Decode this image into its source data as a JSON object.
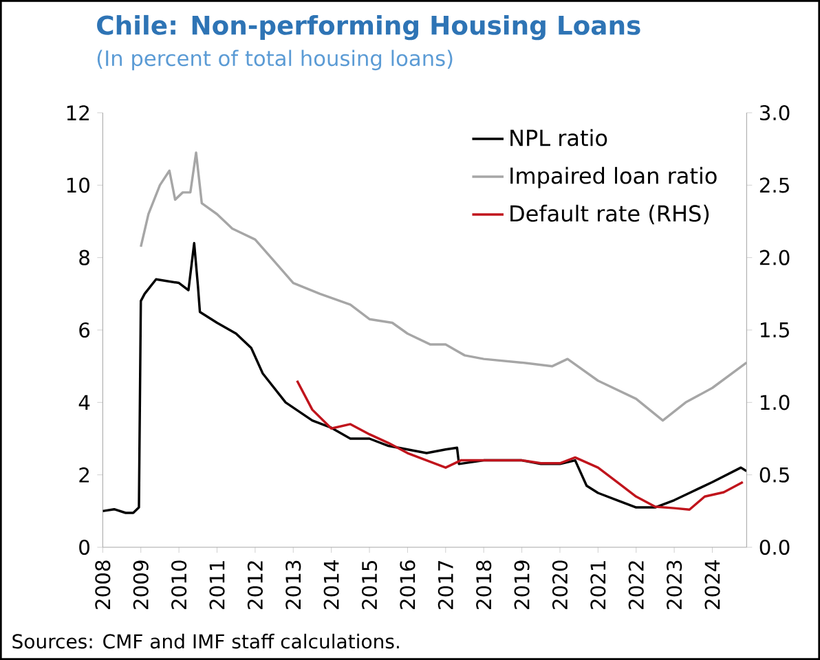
{
  "chart_data": {
    "type": "line",
    "title": "Chile: Non-performing Housing Loans",
    "subtitle": "(In percent of total housing loans)",
    "annotations": [
      "Sources: CMF and IMF staff calculations."
    ],
    "xlim": [
      2008,
      2024.9
    ],
    "xticks": [
      2008,
      2009,
      2010,
      2011,
      2012,
      2013,
      2014,
      2015,
      2016,
      2017,
      2018,
      2019,
      2020,
      2021,
      2022,
      2023,
      2024
    ],
    "ylim": [
      0,
      12
    ],
    "yticks": [
      0,
      2,
      4,
      6,
      8,
      10,
      12
    ],
    "y2lim": [
      0,
      3
    ],
    "y2ticks": [
      {
        "value": 0,
        "label": "0.0"
      },
      {
        "value": 0.5,
        "label": "0.5"
      },
      {
        "value": 1,
        "label": "1.0"
      },
      {
        "value": 1.5,
        "label": "1.5"
      },
      {
        "value": 2,
        "label": "2.0"
      },
      {
        "value": 2.5,
        "label": "2.5"
      },
      {
        "value": 3,
        "label": "3.0"
      }
    ],
    "grid": false,
    "legend": "top right",
    "marker": "none",
    "line_style": "solid",
    "series": [
      {
        "name": "NPL ratio",
        "color": "#000000",
        "x": [
          2008.0,
          2008.3,
          2008.6,
          2008.8,
          2008.95,
          2009.0,
          2009.1,
          2009.4,
          2010.0,
          2010.25,
          2010.4,
          2010.5,
          2010.55,
          2011.0,
          2011.5,
          2011.9,
          2012.2,
          2012.8,
          2013.5,
          2014.0,
          2014.5,
          2015.0,
          2015.5,
          2016.0,
          2016.5,
          2017.0,
          2017.3,
          2017.35,
          2018.0,
          2019.0,
          2019.5,
          2020.0,
          2020.4,
          2020.7,
          2021.0,
          2021.5,
          2022.0,
          2022.5,
          2023.0,
          2023.4,
          2024.0,
          2024.75,
          2024.9
        ],
        "values": [
          1.0,
          1.05,
          0.95,
          0.95,
          1.1,
          6.8,
          7.0,
          7.4,
          7.3,
          7.1,
          8.4,
          7.2,
          6.5,
          6.2,
          5.9,
          5.5,
          4.8,
          4.0,
          3.5,
          3.3,
          3.0,
          3.0,
          2.8,
          2.7,
          2.6,
          2.7,
          2.75,
          2.3,
          2.4,
          2.4,
          2.3,
          2.3,
          2.4,
          1.7,
          1.5,
          1.3,
          1.1,
          1.1,
          1.3,
          1.5,
          1.8,
          2.2,
          2.1
        ]
      },
      {
        "name": "Impaired loan ratio",
        "color": "#a6a6a6",
        "x": [
          2009.0,
          2009.2,
          2009.5,
          2009.75,
          2009.9,
          2010.1,
          2010.3,
          2010.45,
          2010.6,
          2011.0,
          2011.4,
          2012.0,
          2012.5,
          2013.0,
          2013.7,
          2014.5,
          2015.0,
          2015.6,
          2016.0,
          2016.6,
          2017.0,
          2017.5,
          2018.0,
          2019.0,
          2019.8,
          2020.2,
          2021.0,
          2022.0,
          2022.7,
          2023.3,
          2024.0,
          2024.9
        ],
        "values": [
          8.3,
          9.2,
          10.0,
          10.4,
          9.6,
          9.8,
          9.8,
          10.9,
          9.5,
          9.2,
          8.8,
          8.5,
          7.9,
          7.3,
          7.0,
          6.7,
          6.3,
          6.2,
          5.9,
          5.6,
          5.6,
          5.3,
          5.2,
          5.1,
          5.0,
          5.2,
          4.6,
          4.1,
          3.5,
          4.0,
          4.4,
          5.1
        ]
      },
      {
        "name": "Default rate (RHS)",
        "color": "#c0141c",
        "axis": "y2",
        "x": [
          2013.1,
          2013.5,
          2014.0,
          2014.5,
          2015.0,
          2015.5,
          2016.0,
          2016.5,
          2017.0,
          2017.4,
          2018.0,
          2019.0,
          2019.5,
          2020.0,
          2020.4,
          2021.0,
          2021.5,
          2022.0,
          2022.5,
          2023.0,
          2023.4,
          2023.8,
          2024.3,
          2024.8
        ],
        "values": [
          1.15,
          0.95,
          0.82,
          0.85,
          0.78,
          0.72,
          0.65,
          0.6,
          0.55,
          0.6,
          0.6,
          0.6,
          0.58,
          0.58,
          0.62,
          0.55,
          0.45,
          0.35,
          0.28,
          0.27,
          0.26,
          0.35,
          0.38,
          0.45
        ]
      }
    ]
  }
}
